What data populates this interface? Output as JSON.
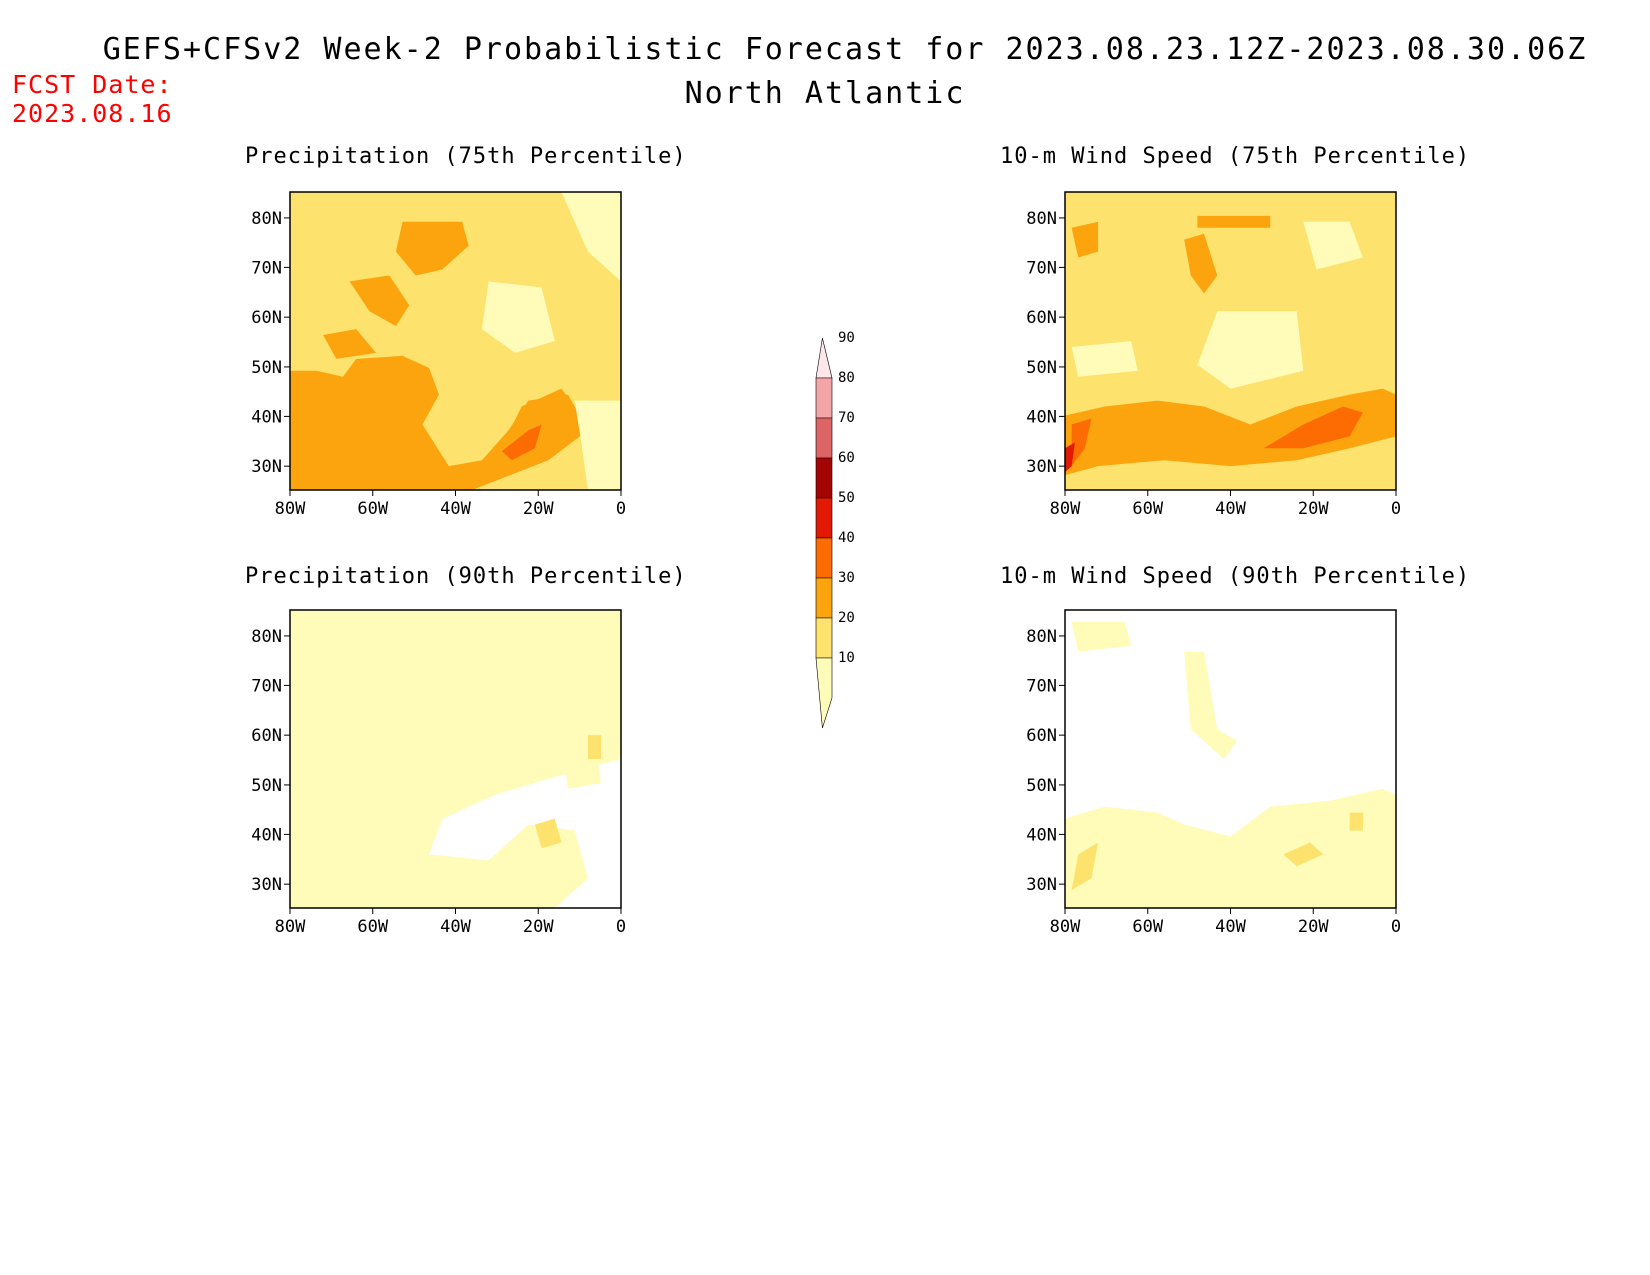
{
  "header": {
    "title": "GEFS+CFSv2 Week-2 Probabilistic Forecast for 2023.08.23.12Z-2023.08.30.06Z",
    "region": "North Atlantic",
    "fcst_label": "FCST Date:",
    "fcst_date": "2023.08.16"
  },
  "panels": [
    {
      "id": "precip75",
      "title": "Precipitation (75th Percentile)",
      "field": "precipitation",
      "percentile": 75
    },
    {
      "id": "wind75",
      "title": "10-m Wind Speed (75th Percentile)",
      "field": "wind",
      "percentile": 75
    },
    {
      "id": "precip90",
      "title": "Precipitation (90th Percentile)",
      "field": "precipitation",
      "percentile": 90
    },
    {
      "id": "wind90",
      "title": "10-m Wind Speed (90th Percentile)",
      "field": "wind",
      "percentile": 90
    }
  ],
  "axes": {
    "lat_labels": [
      "80N",
      "70N",
      "60N",
      "50N",
      "40N",
      "30N"
    ],
    "lon_labels": [
      "80W",
      "60W",
      "40W",
      "20W",
      "0"
    ]
  },
  "colorbar": {
    "levels": [
      "10",
      "20",
      "30",
      "40",
      "50",
      "60",
      "70",
      "80",
      "90"
    ],
    "colors": [
      "#fffbb8",
      "#fde26d",
      "#fca40e",
      "#fd6c02",
      "#e21a05",
      "#a50502",
      "#dc6464",
      "#f4a5a8",
      "#fde7ea"
    ]
  }
}
